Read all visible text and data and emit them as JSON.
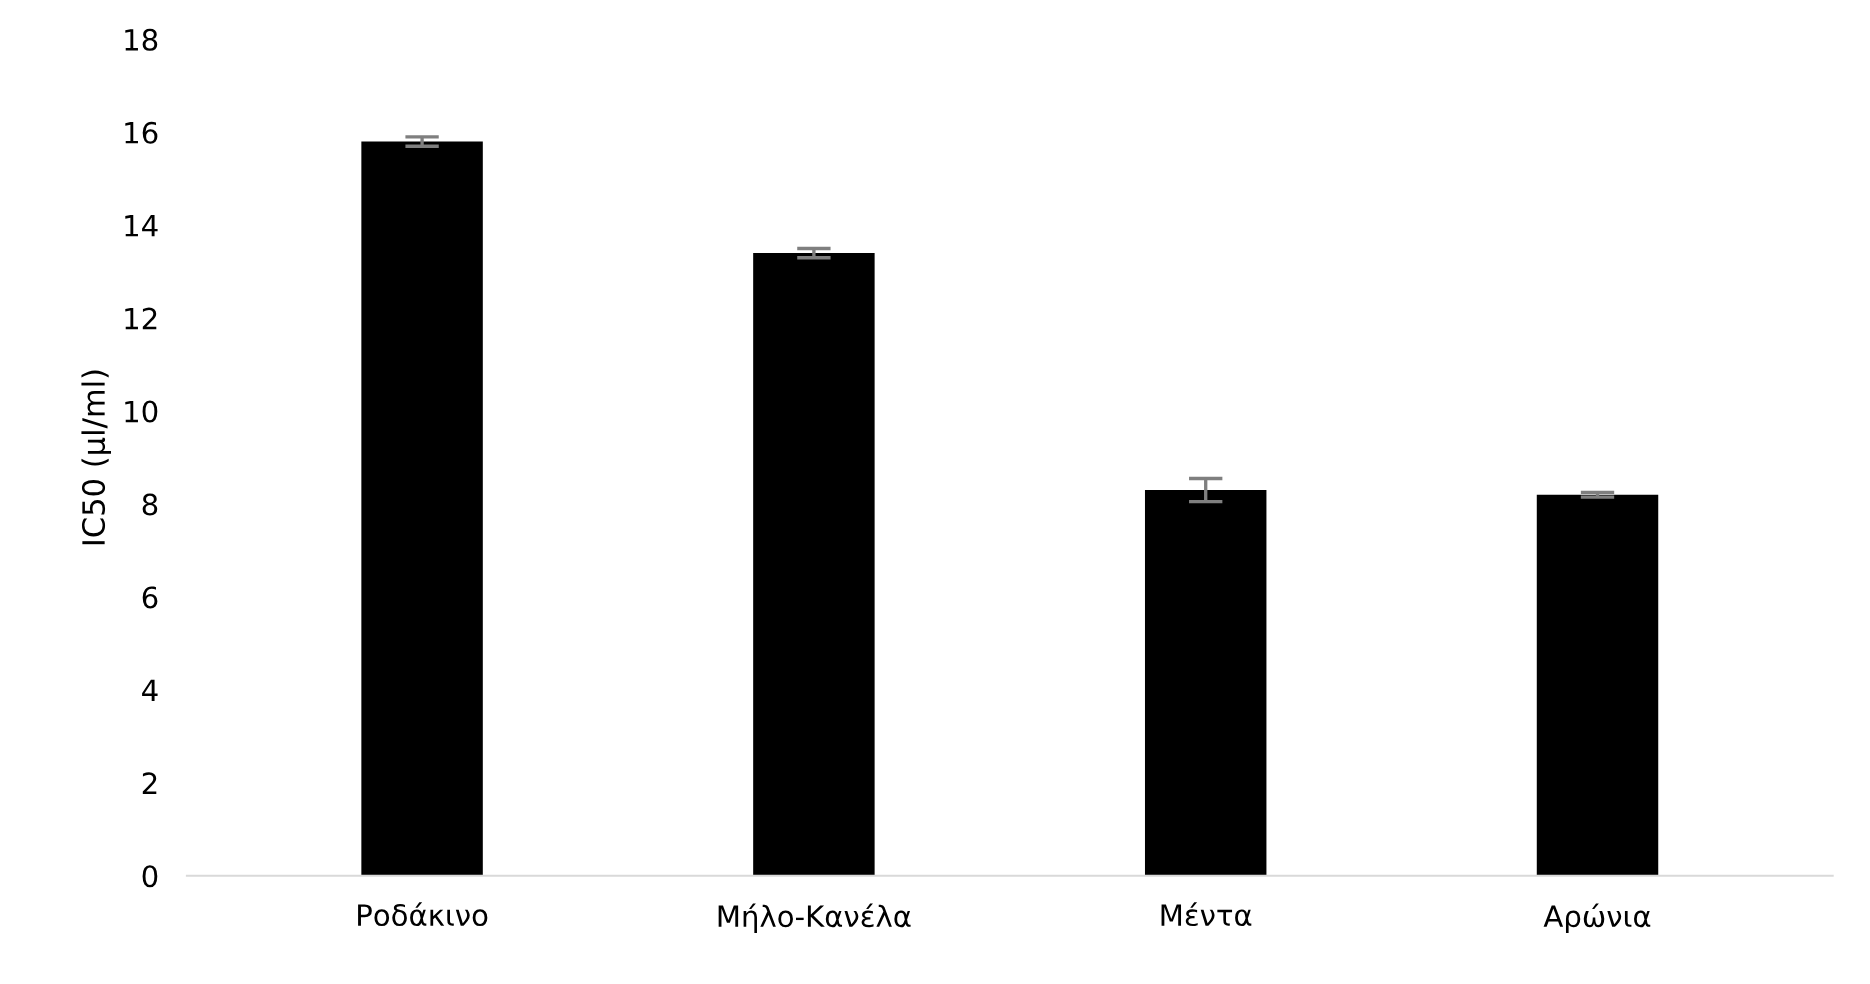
{
  "chart_data": {
    "type": "bar",
    "ylabel": "IC50 (μl/ml)",
    "categories": [
      "Ροδάκινο",
      "Μήλο-Κανέλα",
      "Μέντα",
      "Αρώνια"
    ],
    "values": [
      15.8,
      13.4,
      8.3,
      8.2
    ],
    "errors": [
      0.1,
      0.1,
      0.25,
      0.05
    ],
    "color": "#000000",
    "ylim": [
      0,
      18
    ],
    "yticks": [
      0,
      2,
      4,
      6,
      8,
      10,
      12,
      14,
      16,
      18
    ],
    "grid": false
  }
}
